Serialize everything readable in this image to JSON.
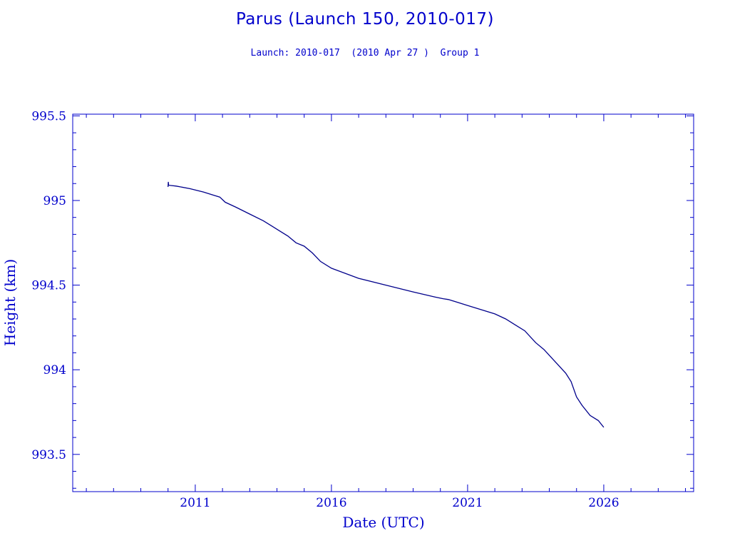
{
  "header": {
    "title": "Parus (Launch 150, 2010-017)",
    "subtitle": "Launch: 2010-017  (2010 Apr 27 )  Group 1"
  },
  "colors": {
    "axis": "#0000cc",
    "line": "#00008b",
    "text": "#0000cc"
  },
  "chart_data": {
    "type": "line",
    "title": "Parus (Launch 150, 2010-017)",
    "subtitle": "Launch: 2010-017  (2010 Apr 27 )  Group 1",
    "xlabel": "Date (UTC)",
    "ylabel": "Height (km)",
    "xlim": [
      2006.5,
      2029.3
    ],
    "ylim": [
      993.28,
      995.51
    ],
    "x_ticks": [
      2011,
      2016,
      2021,
      2026
    ],
    "x_tick_labels": [
      "2011",
      "2016",
      "2021",
      "2026"
    ],
    "y_ticks": [
      993.5,
      994,
      994.5,
      995,
      995.5
    ],
    "y_tick_labels": [
      "993.5",
      "994",
      "994.5",
      "995",
      "995.5"
    ],
    "grid": false,
    "series": [
      {
        "x": [
          2010.0,
          2010.01,
          2010.02,
          2010.3,
          2010.8,
          2011.3,
          2011.7,
          2011.9,
          2012.1,
          2012.5,
          2013.0,
          2013.5,
          2013.8,
          2014.1,
          2014.4,
          2014.7,
          2015.0,
          2015.3,
          2015.6,
          2016.0,
          2016.5,
          2017.0,
          2018.0,
          2019.0,
          2019.8,
          2020.1,
          2020.3,
          2021.0,
          2021.5,
          2022.0,
          2022.4,
          2022.7,
          2023.1,
          2023.5,
          2023.8,
          2024.2,
          2024.6,
          2024.8,
          2025.0,
          2025.2,
          2025.5,
          2025.8,
          2026.0
        ],
        "y": [
          995.08,
          995.11,
          995.09,
          995.085,
          995.07,
          995.05,
          995.03,
          995.02,
          994.99,
          994.96,
          994.92,
          994.88,
          994.85,
          994.82,
          994.79,
          994.75,
          994.73,
          994.69,
          994.64,
          994.6,
          994.57,
          994.54,
          994.5,
          994.46,
          994.43,
          994.42,
          994.415,
          994.38,
          994.355,
          994.33,
          994.3,
          994.27,
          994.23,
          994.16,
          994.12,
          994.05,
          993.98,
          993.93,
          993.84,
          993.79,
          993.73,
          993.7,
          993.66
        ]
      }
    ]
  }
}
